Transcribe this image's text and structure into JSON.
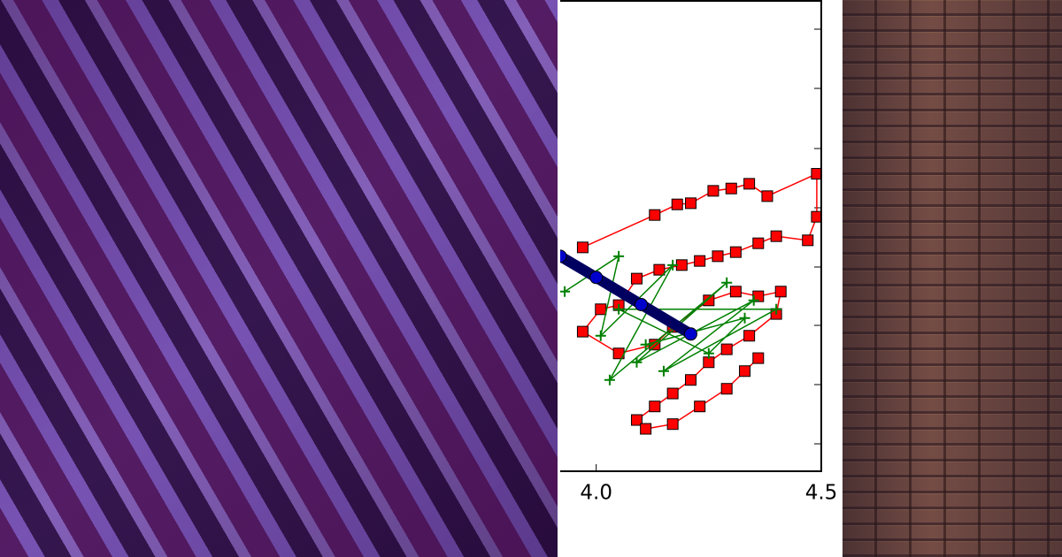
{
  "chart_data": {
    "type": "line",
    "xlim": [
      3.92,
      4.5
    ],
    "ylim": [
      0,
      8
    ],
    "xticks": [
      {
        "value": 4,
        "label": "4.0"
      },
      4.5
    ],
    "series": [
      {
        "color": "#ff0000",
        "marker": "square",
        "x": [
          3.97,
          4.13,
          4.18,
          4.21,
          4.26,
          4.3,
          4.34,
          4.38,
          4.49,
          4.49,
          4.47,
          4.4,
          4.36,
          4.31,
          4.27,
          4.23,
          4.19,
          4.14,
          4.09,
          4.05,
          4.01,
          3.97,
          4.05,
          4.13,
          4.17,
          4.25,
          4.31,
          4.36,
          4.41,
          4.4,
          4.34,
          4.29,
          4.25,
          4.21,
          4.17,
          4.13,
          4.09,
          4.11,
          4.17,
          4.23,
          4.29,
          4.33,
          4.36
        ],
        "values": [
          3.8,
          4.35,
          4.53,
          4.55,
          4.76,
          4.8,
          4.88,
          4.67,
          5.05,
          4.32,
          3.92,
          3.99,
          3.87,
          3.72,
          3.65,
          3.57,
          3.5,
          3.42,
          3.27,
          2.82,
          2.75,
          2.37,
          2.0,
          2.15,
          2.45,
          2.9,
          3.05,
          2.97,
          3.05,
          2.67,
          2.3,
          2.07,
          1.85,
          1.55,
          1.32,
          1.1,
          0.87,
          0.72,
          0.8,
          1.1,
          1.4,
          1.7,
          1.92
        ]
      },
      {
        "color": "#008000",
        "marker": "plus",
        "x": [
          3.93,
          4.05,
          4.01,
          4.17,
          4.03,
          4.29,
          4.09,
          4.35,
          4.15,
          4.4,
          4.05,
          4.25,
          4.33,
          4.11
        ],
        "values": [
          3.05,
          3.65,
          2.3,
          3.5,
          1.55,
          3.2,
          1.85,
          2.9,
          1.7,
          2.75,
          2.75,
          2.0,
          2.6,
          2.15
        ]
      },
      {
        "color": "#0000cc",
        "marker": "circle",
        "x": [
          3.92,
          4.0,
          4.1,
          4.21
        ],
        "values": [
          3.65,
          3.29,
          2.83,
          2.33
        ]
      }
    ]
  }
}
